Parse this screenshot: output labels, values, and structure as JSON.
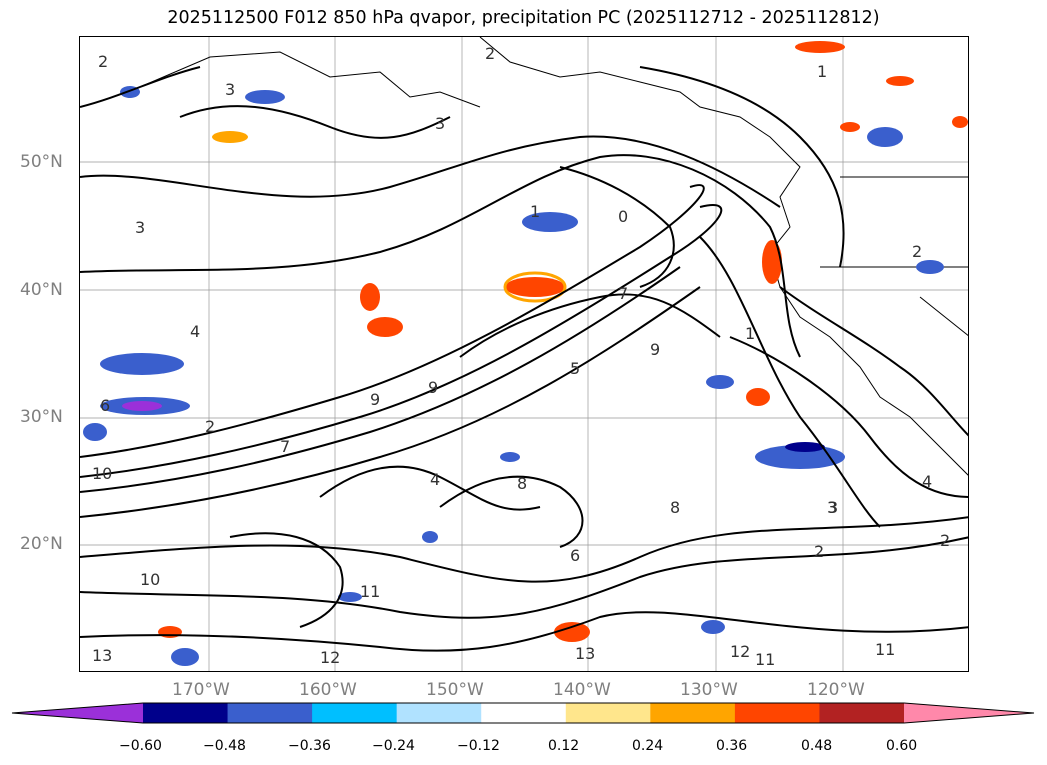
{
  "title": "2025112500 F012 850 hPa qvapor, precipitation PC (2025112712 - 2025112812)",
  "lat_labels": [
    "50°N",
    "40°N",
    "30°N",
    "20°N"
  ],
  "lon_labels": [
    "170°W",
    "160°W",
    "150°W",
    "140°W",
    "130°W",
    "120°W"
  ],
  "colorbar": {
    "ticks": [
      "−0.60",
      "−0.48",
      "−0.36",
      "−0.24",
      "−0.12",
      "0.12",
      "0.24",
      "0.36",
      "0.48",
      "0.60"
    ],
    "colors": [
      "#9b30d9",
      "#00008b",
      "#3a5fcd",
      "#00bfff",
      "#b0e2ff",
      "#ffffff",
      "#ffe68c",
      "#ffa500",
      "#ff4500",
      "#b22222",
      "#ff88aa"
    ]
  },
  "contour_labels": [
    "2",
    "3",
    "1",
    "3",
    "2",
    "3",
    "1",
    "2",
    "0",
    "7",
    "1",
    "2",
    "3",
    "4",
    "6",
    "9",
    "10",
    "2",
    "9",
    "5",
    "8",
    "7",
    "9",
    "6",
    "8",
    "4",
    "11",
    "10",
    "12",
    "13",
    "3",
    "2",
    "13",
    "12",
    "11",
    "11",
    "4"
  ]
}
